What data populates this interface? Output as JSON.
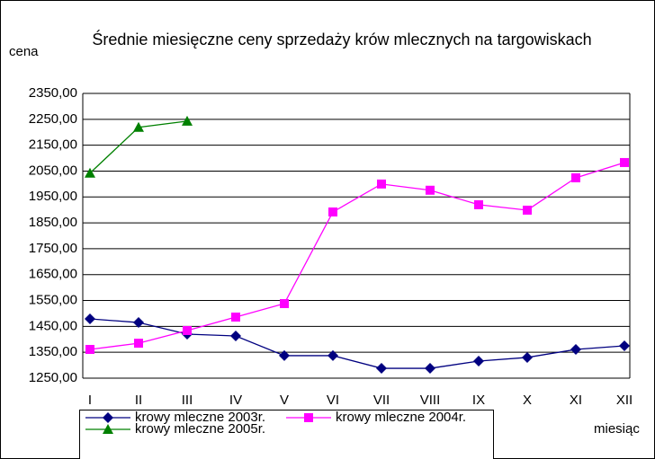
{
  "chart_data": {
    "type": "line",
    "title": "Średnie miesięczne ceny sprzedaży krów mlecznych na targowiskach",
    "y_label": "cena",
    "x_label": "miesiąc",
    "categories": [
      "I",
      "II",
      "III",
      "IV",
      "V",
      "VI",
      "VII",
      "VIII",
      "IX",
      "X",
      "XI",
      "XII"
    ],
    "series": [
      {
        "name": "krowy mleczne 2003r.",
        "color": "#000080",
        "marker": "diamond",
        "values": [
          1479,
          1465,
          1420,
          1413,
          1337,
          1337,
          1288,
          1288,
          1316,
          1330,
          1361,
          1375
        ]
      },
      {
        "name": "krowy mleczne 2004r.",
        "color": "#ff00ff",
        "marker": "square",
        "values": [
          1361,
          1385,
          1434,
          1486,
          1538,
          1892,
          2000,
          1976,
          1920,
          1899,
          2024,
          2083
        ]
      },
      {
        "name": "krowy mleczne 2005r.",
        "color": "#008000",
        "marker": "triangle",
        "values": [
          2042,
          2219,
          2243,
          null,
          null,
          null,
          null,
          null,
          null,
          null,
          null,
          null
        ]
      }
    ],
    "ylim": [
      1250,
      2350
    ],
    "yticks": [
      {
        "value": 1250,
        "label": "1250,00"
      },
      {
        "value": 1350,
        "label": "1350,00"
      },
      {
        "value": 1450,
        "label": "1450,00"
      },
      {
        "value": 1550,
        "label": "1550,00"
      },
      {
        "value": 1650,
        "label": "1650,00"
      },
      {
        "value": 1750,
        "label": "1750,00"
      },
      {
        "value": 1850,
        "label": "1850,00"
      },
      {
        "value": 1950,
        "label": "1950,00"
      },
      {
        "value": 2050,
        "label": "2050,00"
      },
      {
        "value": 2150,
        "label": "2150,00"
      },
      {
        "value": 2250,
        "label": "2250,00"
      },
      {
        "value": 2350,
        "label": "2350,00"
      }
    ],
    "grid": true
  }
}
